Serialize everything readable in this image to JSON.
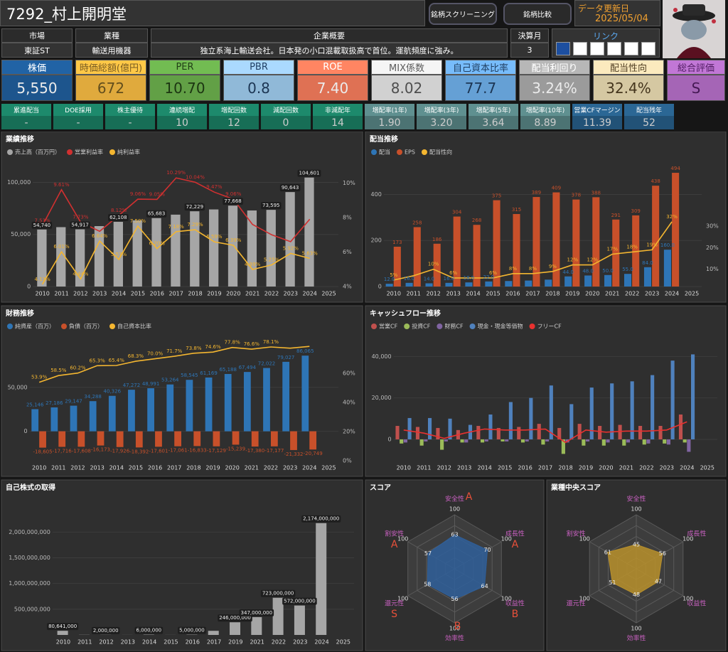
{
  "header": {
    "title": "7292_村上開明堂",
    "buttons": [
      "銘柄スクリーニング",
      "銘柄比較"
    ],
    "updated_label": "データ更新日",
    "updated": "2025/05/04"
  },
  "info": {
    "columns": [
      {
        "label": "市場",
        "value": "東証ST"
      },
      {
        "label": "業種",
        "value": "輸送用機器"
      },
      {
        "label": "企業概要",
        "value": "独立系海上輸送会社。日本発の小口混載取扱高で首位。運航頻度に強み。"
      },
      {
        "label": "決算月",
        "value": "3"
      }
    ],
    "links_label": "リンク"
  },
  "kpis": [
    {
      "label": "株価",
      "value": "5,550",
      "color": "#1f5c99",
      "text_color": "#ffffff"
    },
    {
      "label": "時価総額(億円)",
      "value": "672",
      "color": "#f4b942",
      "text_color": "#6b5520"
    },
    {
      "label": "PER",
      "value": "10.70",
      "color": "#6aae4c",
      "text_color": "#1e3a14"
    },
    {
      "label": "PBR",
      "value": "0.8",
      "color": "#9dc9eb",
      "text_color": "#1e3a5a"
    },
    {
      "label": "ROE",
      "value": "7.40",
      "color": "#f27b5b",
      "text_color": "#ffffff"
    },
    {
      "label": "MIX係数",
      "value": "8.02",
      "color": "#e3e3e3",
      "text_color": "#555555"
    },
    {
      "label": "自己資本比率",
      "value": "77.7",
      "color": "#6eaee8",
      "text_color": "#1e3a5a"
    },
    {
      "label": "配当利回り",
      "value": "3.24%",
      "color": "#a9a9a9",
      "text_color": "#ffffff"
    },
    {
      "label": "配当性向",
      "value": "32.4%",
      "color": "#e8d9b0",
      "text_color": "#4a3a20"
    },
    {
      "label": "総合評価",
      "value": "S",
      "color": "#b36ec6",
      "text_color": "#4a1a5a"
    }
  ],
  "stats": [
    {
      "label": "累進配当",
      "value": "-",
      "color": "#1d8a6c"
    },
    {
      "label": "DOE採用",
      "value": "-",
      "color": "#1d8a6c"
    },
    {
      "label": "株主優待",
      "value": "-",
      "color": "#1d8a6c"
    },
    {
      "label": "連続増配",
      "value": "10",
      "color": "#1d8a6c"
    },
    {
      "label": "増配回数",
      "value": "12",
      "color": "#1d8a6c"
    },
    {
      "label": "減配回数",
      "value": "0",
      "color": "#1d8a6c"
    },
    {
      "label": "非減配年",
      "value": "14",
      "color": "#1d8a6c"
    },
    {
      "label": "増配率(1年)",
      "value": "1.90",
      "color": "#5f9090"
    },
    {
      "label": "増配率(3年)",
      "value": "3.20",
      "color": "#5f9090"
    },
    {
      "label": "増配率(5年)",
      "value": "3.64",
      "color": "#5f9090"
    },
    {
      "label": "増配率(10年)",
      "value": "8.89",
      "color": "#5f9090"
    },
    {
      "label": "営業CFマージン",
      "value": "11.39",
      "color": "#2b6795"
    },
    {
      "label": "配当残年",
      "value": "52",
      "color": "#2b6795"
    }
  ],
  "chart_data": [
    {
      "type": "combo",
      "title": "業績推移",
      "legend": "top-left",
      "grid": true,
      "data_labels": true,
      "categories": [
        "2010",
        "2011",
        "2012",
        "2013",
        "2014",
        "2015",
        "2016",
        "2017",
        "2018",
        "2019",
        "2020",
        "2021",
        "2022",
        "2023",
        "2024",
        "2025"
      ],
      "ylim": [
        0,
        116000
      ],
      "yticks": [
        0,
        {
          "value": 50000,
          "label": "50,000"
        },
        {
          "value": 100000,
          "label": "100,000"
        }
      ],
      "y2lim": [
        4,
        11
      ],
      "y2ticks": [
        {
          "value": 4,
          "label": "4%"
        },
        {
          "value": 6,
          "label": "6%"
        },
        {
          "value": 8,
          "label": "8%"
        },
        {
          "value": 10,
          "label": "10%"
        }
      ],
      "series": [
        {
          "name": "売上高（百万円）",
          "kind": "bar",
          "color": "#a6a6a6",
          "values": [
            54740,
            57000,
            54917,
            58000,
            62108,
            63500,
            65683,
            69000,
            72229,
            74000,
            77668,
            73000,
            73595,
            90643,
            104601,
            null
          ],
          "value_labels": [
            "54,740",
            null,
            "54,917",
            null,
            "62,108",
            null,
            "65,683",
            null,
            "72,229",
            null,
            "77,668",
            null,
            "73,595",
            "90,643",
            "104,601",
            null
          ]
        },
        {
          "name": "営業利益率",
          "kind": "line",
          "axis": "y2",
          "color": "#d03030",
          "values": [
            7.53,
            9.61,
            7.73,
            7.2,
            8.12,
            9.06,
            9.05,
            10.29,
            10.04,
            9.47,
            9.06,
            7.6,
            7.0,
            6.6,
            7.9,
            null
          ],
          "value_labels": [
            "7.53%",
            "9.61%",
            "7.73%",
            null,
            "8.12%",
            "9.06%",
            "9.05%",
            "10.29%",
            "10.04%",
            "9.47%",
            "9.06%",
            null,
            null,
            null,
            null,
            null
          ]
        },
        {
          "name": "純利益率",
          "kind": "line",
          "axis": "y2",
          "color": "#f4b630",
          "values": [
            4.13,
            6.01,
            4.44,
            6.64,
            5.57,
            7.5,
            6.2,
            7.18,
            7.29,
            6.59,
            6.39,
            4.99,
            5.25,
            5.92,
            5.63,
            null
          ],
          "value_labels": [
            "4.13%",
            "6.01%",
            "4.44%",
            "6.64%",
            "5.57%",
            "7.50%",
            "6.20%",
            "7.18%",
            "7.29%",
            "6.59%",
            "6.39%",
            "4.99%",
            "5.25%",
            "5.92%",
            "5.63%",
            null
          ]
        }
      ]
    },
    {
      "type": "combo",
      "title": "配当推移",
      "legend": "top-left",
      "grid": true,
      "data_labels": true,
      "categories": [
        "2010",
        "2011",
        "2012",
        "2013",
        "2014",
        "2015",
        "2016",
        "2017",
        "2018",
        "2019",
        "2020",
        "2021",
        "2022",
        "2023",
        "2024",
        "2025"
      ],
      "ylim": [
        0,
        525
      ],
      "yticks": [
        0,
        200,
        400
      ],
      "y2lim": [
        2,
        58
      ],
      "y2ticks": [
        {
          "value": 10,
          "label": "10%"
        },
        {
          "value": 20,
          "label": "20%"
        },
        {
          "value": 30,
          "label": "30%"
        }
      ],
      "series": [
        {
          "name": "配当",
          "kind": "bar",
          "color": "#2e75b6",
          "values": [
            12,
            16,
            14,
            16,
            18,
            22,
            24,
            26,
            30,
            44,
            48,
            50,
            55,
            84,
            160,
            null
          ],
          "value_labels": [
            "12.0",
            "16.0",
            "14.0",
            "16.0",
            "18.0",
            "22.0",
            null,
            null,
            null,
            "44.0",
            "48.0",
            "50.0",
            "55.0",
            "84.0",
            "160.0",
            null
          ]
        },
        {
          "name": "EPS",
          "kind": "bar",
          "color": "#c8502a",
          "values": [
            173,
            258,
            186,
            304,
            268,
            375,
            315,
            389,
            409,
            378,
            388,
            291,
            309,
            438,
            494,
            null
          ]
        },
        {
          "name": "配当性向",
          "kind": "line",
          "axis": "y2",
          "color": "#f4b630",
          "values": [
            5,
            7,
            10,
            6,
            6,
            6,
            8,
            8,
            9,
            12,
            12,
            17,
            18,
            19,
            32,
            null
          ],
          "value_labels": [
            "5%",
            null,
            "10%",
            "6%",
            null,
            "6%",
            "8%",
            "8%",
            "9%",
            "12%",
            "12%",
            "17%",
            "18%",
            "19%",
            "32%",
            null
          ]
        }
      ]
    },
    {
      "type": "combo",
      "title": "財務推移",
      "legend": "top-left",
      "grid": true,
      "data_labels": true,
      "categories": [
        "2010",
        "2011",
        "2012",
        "2013",
        "2014",
        "2015",
        "2016",
        "2017",
        "2018",
        "2019",
        "2020",
        "2021",
        "2022",
        "2023",
        "2024",
        "2025"
      ],
      "ylim": [
        -33500,
        104000
      ],
      "yticks": [
        0,
        {
          "value": 50000,
          "label": "50,000"
        }
      ],
      "y2lim": [
        0,
        83
      ],
      "y2ticks": [
        {
          "value": 0,
          "label": "0%"
        },
        {
          "value": 20,
          "label": "20%"
        },
        {
          "value": 40,
          "label": "40%"
        },
        {
          "value": 60,
          "label": "60%"
        }
      ],
      "series": [
        {
          "name": "純資産（百万）",
          "kind": "bar",
          "color": "#2e75b6",
          "values": [
            25146,
            27186,
            29147,
            34288,
            40326,
            47272,
            48991,
            53264,
            58545,
            61169,
            65188,
            67494,
            72022,
            79027,
            86065,
            null
          ],
          "value_labels": [
            "25,146",
            "27,186",
            "29,147",
            "34,288",
            "40,326",
            "47,272",
            "48,991",
            "53,264",
            "58,545",
            "61,169",
            "65,188",
            "67,494",
            "72,022",
            "79,027",
            "86,065",
            null
          ]
        },
        {
          "name": "負債（百万）",
          "kind": "bar",
          "color": "#c8502a",
          "values": [
            -18605,
            -17716,
            -17608,
            -16173,
            -17926,
            -18392,
            -17601,
            -17061,
            -16833,
            -17129,
            -15239,
            -17380,
            -17177,
            -21332,
            -20749,
            null
          ],
          "value_labels": [
            "-18,605",
            "-17,716",
            "-17,608",
            "-16,173",
            "-17,926",
            "-18,392",
            "-17,601",
            "-17,061",
            "-16,833",
            "-17,129",
            "-15,239",
            "-17,380",
            "-17,177",
            "-21,332",
            "-20,749",
            null
          ]
        },
        {
          "name": "自己資本比率",
          "kind": "line",
          "axis": "y2",
          "color": "#f4b630",
          "values": [
            53.9,
            58.5,
            60.2,
            65.3,
            65.4,
            68.3,
            70.0,
            71.7,
            73.8,
            74.6,
            77.8,
            76.6,
            78.1,
            77.3,
            78.5,
            null
          ],
          "value_labels": [
            "53.9%",
            "58.5%",
            "60.2%",
            "65.3%",
            "65.4%",
            "68.3%",
            "70.0%",
            "71.7%",
            "73.8%",
            "74.6%",
            "77.8%",
            "76.6%",
            "78.1%",
            null,
            null,
            null
          ]
        }
      ]
    },
    {
      "type": "combo",
      "title": "キャッシュフロー推移",
      "legend": "top-left",
      "grid": true,
      "data_labels": false,
      "categories": [
        "2010",
        "2011",
        "2012",
        "2013",
        "2014",
        "2015",
        "2016",
        "2017",
        "2018",
        "2019",
        "2020",
        "2021",
        "2022",
        "2023",
        "2024",
        "2025"
      ],
      "ylim": [
        -10300,
        48000
      ],
      "yticks": [
        0,
        {
          "value": 20000,
          "label": "20,000"
        },
        {
          "value": 40000,
          "label": "40,000"
        }
      ],
      "series": [
        {
          "name": "営業CF",
          "kind": "bar",
          "color": "#c0504d",
          "values": [
            6500,
            6000,
            5500,
            4500,
            6500,
            5500,
            6000,
            7500,
            5500,
            7500,
            6500,
            7000,
            6500,
            6500,
            12000,
            null
          ]
        },
        {
          "name": "投資CF",
          "kind": "bar",
          "color": "#9bbb59",
          "values": [
            -2000,
            -3000,
            -5000,
            -1500,
            -1500,
            -1000,
            -1500,
            -2500,
            -7000,
            -3000,
            -3000,
            -3000,
            -2500,
            -2000,
            -1500,
            null
          ]
        },
        {
          "name": "財務CF",
          "kind": "bar",
          "color": "#8064a2",
          "values": [
            -1500,
            -1000,
            -1000,
            -1500,
            -1000,
            -1000,
            -1000,
            -1000,
            -1500,
            -1000,
            -1500,
            -1500,
            -2000,
            -2500,
            -6000,
            null
          ]
        },
        {
          "name": "現金・現金等価物",
          "kind": "bar",
          "color": "#4f81bd",
          "values": [
            10300,
            10300,
            10000,
            7000,
            12000,
            18000,
            20000,
            26000,
            17000,
            25000,
            27000,
            28000,
            31000,
            38000,
            41000,
            null
          ]
        },
        {
          "name": "フリーCF",
          "kind": "line",
          "color": "#e8312f",
          "values": [
            4500,
            3000,
            500,
            3000,
            5000,
            4500,
            4500,
            5000,
            -1500,
            4500,
            3500,
            4000,
            4000,
            4500,
            8500,
            null
          ]
        }
      ]
    },
    {
      "type": "combo",
      "title": "自己株式の取得",
      "grid": true,
      "data_labels": true,
      "kind": "bar",
      "color": "#a6a6a6",
      "categories": [
        "2010",
        "2011",
        "2012",
        "2013",
        "2014",
        "2015",
        "2016",
        "2017",
        "2019",
        "2021",
        "2022",
        "2023",
        "2024",
        "2025"
      ],
      "values": [
        80641000,
        3000000,
        2000000,
        1000000,
        6000000,
        1000000,
        5000000,
        80000000,
        246000000,
        347000000,
        723000000,
        572000000,
        2174000000,
        null
      ],
      "value_labels": [
        "80,641,000",
        null,
        "2,000,000",
        null,
        "6,000,000",
        null,
        "5,000,000",
        null,
        "246,000,000",
        "347,000,000",
        "723,000,000",
        "572,000,000",
        "2,174,000,000",
        null
      ],
      "ylim": [
        0,
        2350000000
      ],
      "yticks": [
        {
          "value": 500000000,
          "label": "500,000,000"
        },
        {
          "value": 1000000000,
          "label": "1,000,000,000"
        },
        {
          "value": 1500000000,
          "label": "1,500,000,000"
        },
        {
          "value": 2000000000,
          "label": "2,000,000,000"
        }
      ]
    },
    {
      "type": "radar",
      "title": "スコア",
      "axes": [
        "安全性",
        "成長性",
        "収益性",
        "効率性",
        "還元性",
        "割安性"
      ],
      "values": [
        63,
        70,
        64,
        56,
        58,
        57
      ],
      "grades": [
        "A",
        "A",
        "B",
        "B",
        "S",
        "A"
      ],
      "rlim": [
        0,
        100
      ],
      "rticks": [
        100
      ],
      "color": "#2f5f9a"
    },
    {
      "type": "radar",
      "title": "業種中央スコア",
      "axes": [
        "安全性",
        "成長性",
        "収益性",
        "効率性",
        "還元性",
        "割安性"
      ],
      "values": [
        45,
        56,
        47,
        48,
        51,
        61
      ],
      "rlim": [
        0,
        100
      ],
      "rticks": [
        100
      ],
      "color": "#b8902c"
    }
  ]
}
